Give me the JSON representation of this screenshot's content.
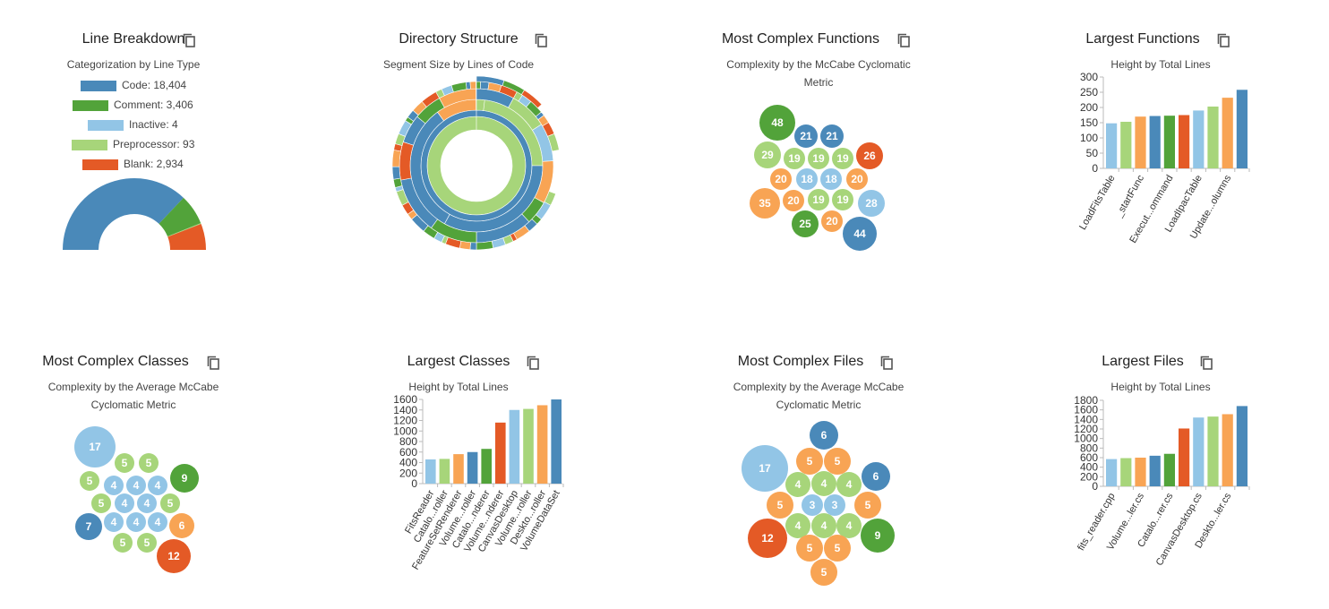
{
  "colors": {
    "blue": "#4a89b9",
    "green": "#52a33a",
    "lightblue": "#92c5e6",
    "lightgreen": "#a7d57a",
    "orange": "#e45a26",
    "lightorange": "#f8a454"
  },
  "icons": {
    "copy": "copy-icon"
  },
  "panels": {
    "line_breakdown": {
      "title": "Line Breakdown",
      "subtitle": "Categorization by Line Type"
    },
    "directory_structure": {
      "title": "Directory Structure",
      "subtitle": "Segment Size by Lines of Code"
    },
    "complex_functions": {
      "title": "Most Complex Functions",
      "subtitle_1": "Complexity by the McCabe Cyclomatic",
      "subtitle_2": "Metric"
    },
    "largest_functions": {
      "title": "Largest Functions",
      "subtitle": "Height by Total Lines"
    },
    "complex_classes": {
      "title": "Most Complex Classes",
      "subtitle_1": "Complexity by the Average McCabe",
      "subtitle_2": "Cyclomatic Metric"
    },
    "largest_classes": {
      "title": "Largest Classes",
      "subtitle": "Height by Total Lines"
    },
    "complex_files": {
      "title": "Most Complex Files",
      "subtitle_1": "Complexity by the Average McCabe",
      "subtitle_2": "Cyclomatic Metric"
    },
    "largest_files": {
      "title": "Largest Files",
      "subtitle": "Height by Total Lines"
    }
  },
  "chart_data": [
    {
      "id": "line_breakdown",
      "type": "pie",
      "variant": "half-donut",
      "legend": [
        "Code: 18,404",
        "Comment: 3,406",
        "Inactive: 4",
        "Preprocessor: 93",
        "Blank: 2,934"
      ],
      "categories": [
        "Code",
        "Comment",
        "Inactive",
        "Preprocessor",
        "Blank"
      ],
      "values": [
        18404,
        3406,
        4,
        93,
        2934
      ],
      "colors": [
        "#4a89b9",
        "#52a33a",
        "#92c5e6",
        "#a7d57a",
        "#e45a26"
      ]
    },
    {
      "id": "directory_structure",
      "type": "sunburst"
    },
    {
      "id": "complex_functions",
      "type": "bubble",
      "values": [
        48,
        21,
        21,
        29,
        19,
        19,
        19,
        26,
        20,
        18,
        18,
        20,
        35,
        20,
        19,
        19,
        28,
        25,
        20,
        44
      ],
      "colors": [
        "green",
        "blue",
        "blue",
        "lightgreen",
        "lightgreen",
        "lightgreen",
        "lightgreen",
        "orange",
        "lightorange",
        "lightblue",
        "lightblue",
        "lightorange",
        "lightorange",
        "lightorange",
        "lightgreen",
        "lightgreen",
        "lightblue",
        "green",
        "lightorange",
        "blue"
      ]
    },
    {
      "id": "largest_functions",
      "type": "bar",
      "values": [
        148,
        153,
        170,
        172,
        173,
        175,
        190,
        203,
        232,
        258
      ],
      "colors": [
        "lightblue",
        "lightgreen",
        "lightorange",
        "blue",
        "green",
        "orange",
        "lightblue",
        "lightgreen",
        "lightorange",
        "blue"
      ],
      "tick_labels": [
        "LoadFitsTable",
        "",
        "_startFunc",
        "",
        "Execut...ommand",
        "",
        "LoadIpacTable",
        "",
        "Update...olumns",
        ""
      ],
      "yticks": [
        0,
        50,
        100,
        150,
        200,
        250,
        300
      ],
      "ylim": [
        0,
        300
      ]
    },
    {
      "id": "complex_classes",
      "type": "bubble",
      "values": [
        17,
        5,
        5,
        5,
        4,
        4,
        4,
        9,
        5,
        4,
        4,
        5,
        7,
        4,
        4,
        4,
        6,
        5,
        5,
        12
      ],
      "colors": [
        "lightblue",
        "lightgreen",
        "lightgreen",
        "lightgreen",
        "lightblue",
        "lightblue",
        "lightblue",
        "green",
        "lightgreen",
        "lightblue",
        "lightblue",
        "lightgreen",
        "blue",
        "lightblue",
        "lightblue",
        "lightblue",
        "lightorange",
        "lightgreen",
        "lightgreen",
        "orange"
      ]
    },
    {
      "id": "largest_classes",
      "type": "bar",
      "values": [
        460,
        470,
        560,
        600,
        660,
        1160,
        1400,
        1420,
        1490,
        1600
      ],
      "colors": [
        "lightblue",
        "lightgreen",
        "lightorange",
        "blue",
        "green",
        "orange",
        "lightblue",
        "lightgreen",
        "lightorange",
        "blue"
      ],
      "tick_labels": [
        "FitsReader",
        "Catalo...roller",
        "FeatureSetRenderer",
        "Volume...roller",
        "Catalo...nderer",
        "Volume...nderer",
        "CanvasDesktop",
        "Volume...roller",
        "Deskto...roller",
        "VolumeDataSet"
      ],
      "yticks": [
        0,
        200,
        400,
        600,
        800,
        1000,
        1200,
        1400,
        1600
      ],
      "ylim": [
        0,
        1600
      ]
    },
    {
      "id": "complex_files",
      "type": "bubble",
      "values": [
        6,
        17,
        5,
        5,
        6,
        4,
        4,
        4,
        5,
        3,
        3,
        5,
        4,
        4,
        4,
        9,
        12,
        5,
        5,
        5
      ],
      "colors": [
        "blue",
        "lightblue",
        "lightorange",
        "lightorange",
        "blue",
        "lightgreen",
        "lightgreen",
        "lightgreen",
        "lightorange",
        "lightblue",
        "lightblue",
        "lightorange",
        "lightgreen",
        "lightgreen",
        "lightgreen",
        "green",
        "orange",
        "lightorange",
        "lightorange",
        "lightorange"
      ]
    },
    {
      "id": "largest_files",
      "type": "bar",
      "values": [
        570,
        590,
        600,
        640,
        680,
        1210,
        1440,
        1460,
        1510,
        1680
      ],
      "colors": [
        "lightblue",
        "lightgreen",
        "lightorange",
        "blue",
        "green",
        "orange",
        "lightblue",
        "lightgreen",
        "lightorange",
        "blue"
      ],
      "tick_labels": [
        "fits_reader.cpp",
        "",
        "Volume...ler.cs",
        "",
        "Catalo...rer.cs",
        "",
        "CanvasDesktop.cs",
        "",
        "Deskto...ler.cs",
        ""
      ],
      "yticks": [
        0,
        200,
        400,
        600,
        800,
        1000,
        1200,
        1400,
        1600,
        1800
      ],
      "ylim": [
        0,
        1800
      ]
    }
  ]
}
